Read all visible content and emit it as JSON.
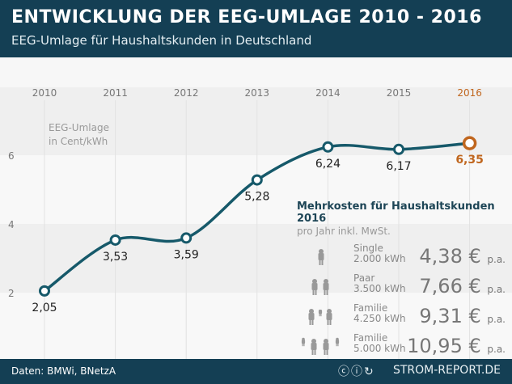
{
  "header": {
    "title": "ENTWICKLUNG DER EEG-UMLAGE 2010 - 2016",
    "subtitle": "EEG-Umlage für Haushaltskunden in Deutschland"
  },
  "footer": {
    "source": "Daten: BMWi, BNetzA",
    "license_icons": [
      "cc-icon",
      "by-icon",
      "sa-icon"
    ],
    "brand": "STROM-REPORT.DE"
  },
  "colors": {
    "header": "#143f54",
    "line": "#16596a",
    "highlight": "#c0661e"
  },
  "chart_data": {
    "type": "line",
    "title": "",
    "ylabel": "EEG-Umlage in Cent/kWh",
    "ylabel_lines": [
      "EEG-Umlage",
      "in Cent/kWh"
    ],
    "categories": [
      "2010",
      "2011",
      "2012",
      "2013",
      "2014",
      "2015",
      "2016"
    ],
    "values": [
      2.05,
      3.53,
      3.59,
      5.28,
      6.24,
      6.17,
      6.35
    ],
    "labels": [
      "2,05",
      "3,53",
      "3,59",
      "5,28",
      "6,24",
      "6,17",
      "6,35"
    ],
    "yticks": [
      "2",
      "4",
      "6"
    ],
    "ytick_values": [
      2,
      4,
      6
    ],
    "x_axis_position": "top",
    "highlight": "2016",
    "grid": "vertical lines + horizontal bands"
  },
  "costs": {
    "title": "Mehrkosten für Haushaltskunden 2016",
    "subtitle": "pro Jahr inkl. MwSt.",
    "unit": "p.a.",
    "rows": [
      {
        "icon": "single-person-icon",
        "label": "Single",
        "kwh": "2.000 kWh",
        "value": "4,38 €"
      },
      {
        "icon": "couple-icon",
        "label": "Paar",
        "kwh": "3.500 kWh",
        "value": "7,66 €"
      },
      {
        "icon": "family-one-child-icon",
        "label": "Familie",
        "kwh": "4.250 kWh",
        "value": "9,31 €"
      },
      {
        "icon": "family-two-children-icon",
        "label": "Familie",
        "kwh": "5.000 kWh",
        "value": "10,95 €"
      }
    ]
  }
}
